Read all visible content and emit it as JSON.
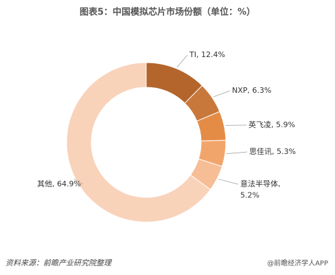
{
  "chart_data": {
    "type": "donut",
    "title": "图表5：中国模拟芯片市场份额（单位：%）",
    "values": [
      12.4,
      6.3,
      5.9,
      5.3,
      5.2,
      64.9
    ],
    "value_labels": [
      "TI, 12.4%",
      "NXP, 6.3%",
      "英飞凌, 5.9%",
      "思佳讯, 5.3%",
      "意法半导体,\n5.2%",
      "其他, 64.9%"
    ],
    "colors": [
      "#b4652b",
      "#c9783b",
      "#e48c46",
      "#f2a56b",
      "#f7bd94",
      "#f9d2ba"
    ],
    "source": "资料来源：前瞻产业研究院整理",
    "credit": "@前瞻经济学人APP"
  }
}
